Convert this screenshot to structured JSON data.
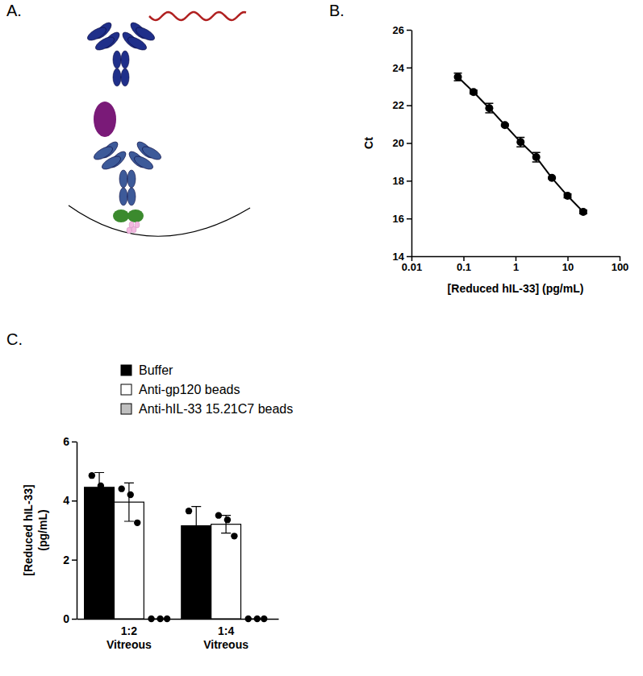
{
  "figure": {
    "panel_labels": [
      "A.",
      "B.",
      "C."
    ]
  },
  "chart_data": [
    {
      "type": "line",
      "marker": "circle",
      "log": "x",
      "x_label": "[Reduced hIL-33] (pg/mL)",
      "y_label": "Ct",
      "x": [
        0.078,
        0.156,
        0.3125,
        0.625,
        1.25,
        2.5,
        5,
        10,
        20
      ],
      "values": [
        23.5,
        22.7,
        21.85,
        20.95,
        20.05,
        19.25,
        18.15,
        17.2,
        16.35
      ],
      "errors": [
        0.2,
        0.1,
        0.25,
        0.05,
        0.25,
        0.25,
        0.05,
        0.1,
        0.1
      ],
      "color": "#000000",
      "xlim": [
        0.01,
        100
      ],
      "xticks": [
        0.01,
        0.1,
        1,
        10,
        100
      ],
      "ylim": [
        14,
        26
      ],
      "yticks": [
        14,
        16,
        18,
        20,
        22,
        24,
        26
      ]
    },
    {
      "type": "bar",
      "legend": "top-left",
      "y_label": "[Reduced hIL-33] (pg/mL)",
      "categories": [
        "1:2 Vitreous",
        "1:4 Vitreous"
      ],
      "series": [
        {
          "name": "Buffer",
          "color": "#000000",
          "values": [
            4.45,
            3.15
          ],
          "errors": [
            0.5,
            0.65
          ],
          "points": [
            [
              4.85,
              4.5,
              4.0
            ],
            [
              3.65,
              3.0,
              2.8
            ]
          ]
        },
        {
          "name": "Anti-gp120 beads",
          "color": "#ffffff",
          "values": [
            3.95,
            3.2
          ],
          "errors": [
            0.65,
            0.3
          ],
          "points": [
            [
              4.4,
              4.2,
              3.25
            ],
            [
              3.5,
              3.35,
              2.8
            ]
          ]
        },
        {
          "name": "Anti-hIL-33 15.21C7 beads",
          "color": "#bfbfbf",
          "values": [
            0,
            0
          ],
          "errors": [
            0,
            0
          ],
          "points": [
            [
              0,
              0,
              0
            ],
            [
              0,
              0,
              0
            ]
          ]
        }
      ],
      "ylim": [
        0,
        6
      ],
      "yticks": [
        0,
        2,
        4,
        6
      ]
    }
  ]
}
